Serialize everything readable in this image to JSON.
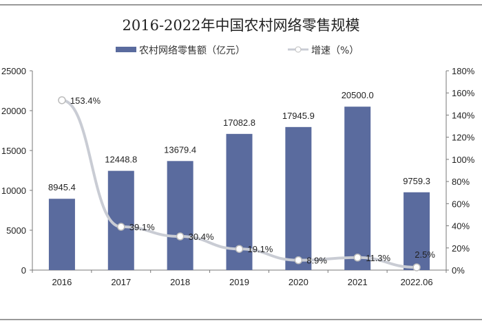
{
  "chart_data": {
    "type": "bar+line",
    "title": "2016-2022年中国农村网络零售规模",
    "categories": [
      "2016",
      "2017",
      "2018",
      "2019",
      "2020",
      "2021",
      "2022.06"
    ],
    "series": [
      {
        "name": "农村网络零售额（亿元）",
        "type": "bar",
        "axis": "left",
        "color": "#5a6b9e",
        "values": [
          8945.4,
          12448.8,
          13679.4,
          17082.8,
          17945.9,
          20500.0,
          9759.3
        ],
        "labels": [
          "8945.4",
          "12448.8",
          "13679.4",
          "17082.8",
          "17945.9",
          "20500.0",
          "9759.3"
        ]
      },
      {
        "name": "增速（%）",
        "type": "line",
        "axis": "right",
        "color": "#c9ccd4",
        "values": [
          153.4,
          39.1,
          30.4,
          19.1,
          8.9,
          11.3,
          2.5
        ],
        "labels": [
          "153.4%",
          "39.1%",
          "30.4%",
          "19.1%",
          "8.9%",
          "11.3%",
          "2.5%"
        ]
      }
    ],
    "y_left": {
      "range": [
        0,
        25000
      ],
      "ticks": [
        "0",
        "5000",
        "10000",
        "15000",
        "20000",
        "25000"
      ]
    },
    "y_right": {
      "range": [
        0,
        180
      ],
      "ticks": [
        "0%",
        "20%",
        "40%",
        "60%",
        "80%",
        "100%",
        "120%",
        "140%",
        "160%",
        "180%"
      ]
    },
    "grid": false,
    "legend_position": "top"
  }
}
